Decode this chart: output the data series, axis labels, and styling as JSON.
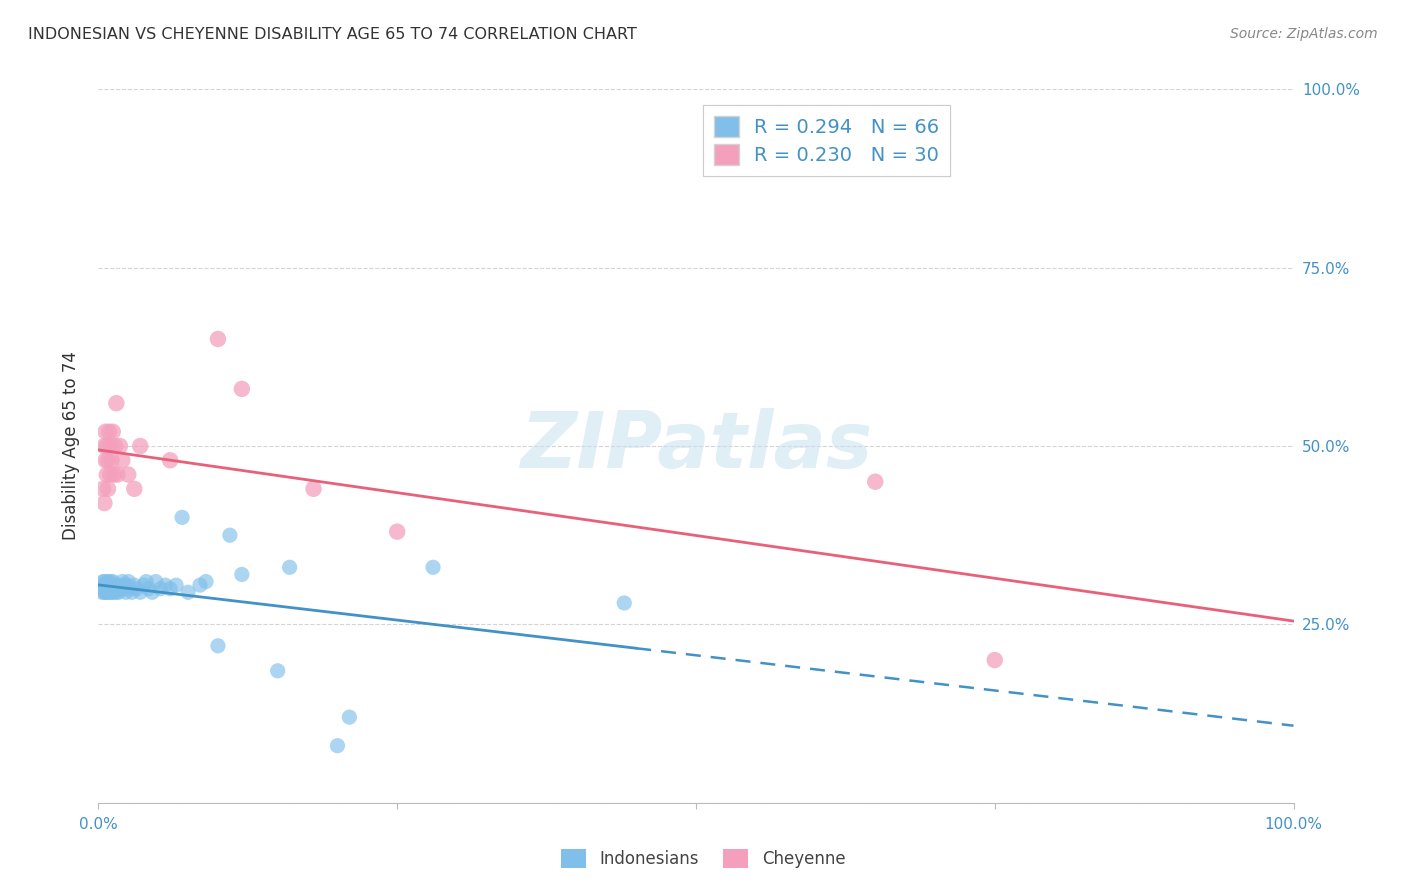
{
  "title": "INDONESIAN VS CHEYENNE DISABILITY AGE 65 TO 74 CORRELATION CHART",
  "source": "Source: ZipAtlas.com",
  "ylabel": "Disability Age 65 to 74",
  "xlim": [
    0.0,
    1.0
  ],
  "ylim": [
    0.0,
    1.0
  ],
  "watermark": "ZIPatlas",
  "indonesian_color": "#7fbfea",
  "cheyenne_color": "#f4a0bc",
  "indonesian_R": 0.294,
  "indonesian_N": 66,
  "cheyenne_R": 0.23,
  "cheyenne_N": 30,
  "indonesian_scatter": [
    [
      0.003,
      0.3
    ],
    [
      0.003,
      0.295
    ],
    [
      0.004,
      0.305
    ],
    [
      0.004,
      0.31
    ],
    [
      0.005,
      0.3
    ],
    [
      0.005,
      0.295
    ],
    [
      0.005,
      0.31
    ],
    [
      0.006,
      0.3
    ],
    [
      0.006,
      0.295
    ],
    [
      0.006,
      0.305
    ],
    [
      0.007,
      0.3
    ],
    [
      0.007,
      0.295
    ],
    [
      0.007,
      0.305
    ],
    [
      0.008,
      0.31
    ],
    [
      0.008,
      0.295
    ],
    [
      0.009,
      0.3
    ],
    [
      0.009,
      0.305
    ],
    [
      0.01,
      0.3
    ],
    [
      0.01,
      0.295
    ],
    [
      0.01,
      0.31
    ],
    [
      0.011,
      0.3
    ],
    [
      0.011,
      0.295
    ],
    [
      0.012,
      0.305
    ],
    [
      0.012,
      0.31
    ],
    [
      0.013,
      0.3
    ],
    [
      0.013,
      0.295
    ],
    [
      0.014,
      0.3
    ],
    [
      0.015,
      0.305
    ],
    [
      0.015,
      0.295
    ],
    [
      0.016,
      0.3
    ],
    [
      0.017,
      0.295
    ],
    [
      0.018,
      0.305
    ],
    [
      0.019,
      0.3
    ],
    [
      0.02,
      0.31
    ],
    [
      0.021,
      0.3
    ],
    [
      0.022,
      0.305
    ],
    [
      0.023,
      0.295
    ],
    [
      0.024,
      0.305
    ],
    [
      0.025,
      0.31
    ],
    [
      0.026,
      0.3
    ],
    [
      0.028,
      0.295
    ],
    [
      0.03,
      0.305
    ],
    [
      0.032,
      0.3
    ],
    [
      0.035,
      0.295
    ],
    [
      0.038,
      0.305
    ],
    [
      0.04,
      0.31
    ],
    [
      0.042,
      0.3
    ],
    [
      0.045,
      0.295
    ],
    [
      0.048,
      0.31
    ],
    [
      0.052,
      0.3
    ],
    [
      0.056,
      0.305
    ],
    [
      0.06,
      0.3
    ],
    [
      0.065,
      0.305
    ],
    [
      0.07,
      0.4
    ],
    [
      0.075,
      0.295
    ],
    [
      0.085,
      0.305
    ],
    [
      0.09,
      0.31
    ],
    [
      0.1,
      0.22
    ],
    [
      0.11,
      0.375
    ],
    [
      0.12,
      0.32
    ],
    [
      0.15,
      0.185
    ],
    [
      0.16,
      0.33
    ],
    [
      0.2,
      0.08
    ],
    [
      0.21,
      0.12
    ],
    [
      0.28,
      0.33
    ],
    [
      0.44,
      0.28
    ]
  ],
  "cheyenne_scatter": [
    [
      0.004,
      0.44
    ],
    [
      0.005,
      0.5
    ],
    [
      0.005,
      0.42
    ],
    [
      0.006,
      0.48
    ],
    [
      0.006,
      0.52
    ],
    [
      0.007,
      0.46
    ],
    [
      0.007,
      0.5
    ],
    [
      0.008,
      0.44
    ],
    [
      0.008,
      0.48
    ],
    [
      0.009,
      0.52
    ],
    [
      0.01,
      0.5
    ],
    [
      0.01,
      0.46
    ],
    [
      0.011,
      0.48
    ],
    [
      0.012,
      0.52
    ],
    [
      0.013,
      0.46
    ],
    [
      0.014,
      0.5
    ],
    [
      0.015,
      0.56
    ],
    [
      0.016,
      0.46
    ],
    [
      0.018,
      0.5
    ],
    [
      0.02,
      0.48
    ],
    [
      0.025,
      0.46
    ],
    [
      0.03,
      0.44
    ],
    [
      0.035,
      0.5
    ],
    [
      0.06,
      0.48
    ],
    [
      0.1,
      0.65
    ],
    [
      0.12,
      0.58
    ],
    [
      0.18,
      0.44
    ],
    [
      0.25,
      0.38
    ],
    [
      0.65,
      0.45
    ],
    [
      0.75,
      0.2
    ]
  ],
  "indonesian_line_color": "#4292c6",
  "cheyenne_line_color": "#e8607a",
  "background_color": "#ffffff",
  "grid_color": "#d0d0d0",
  "title_color": "#333333",
  "source_color": "#888888",
  "axis_label_color": "#333333",
  "tick_color": "#4292c6"
}
